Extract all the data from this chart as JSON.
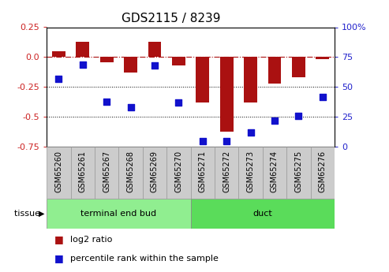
{
  "title": "GDS2115 / 8239",
  "samples": [
    "GSM65260",
    "GSM65261",
    "GSM65267",
    "GSM65268",
    "GSM65269",
    "GSM65270",
    "GSM65271",
    "GSM65272",
    "GSM65273",
    "GSM65274",
    "GSM65275",
    "GSM65276"
  ],
  "log2_ratio": [
    0.05,
    0.13,
    -0.04,
    -0.13,
    0.13,
    -0.07,
    -0.38,
    -0.62,
    -0.38,
    -0.22,
    -0.17,
    -0.02
  ],
  "percentile_rank": [
    57,
    69,
    38,
    33,
    68,
    37,
    5,
    5,
    12,
    22,
    26,
    42
  ],
  "groups": [
    {
      "label": "terminal end bud",
      "start": 0,
      "end": 6,
      "color": "#90ee90"
    },
    {
      "label": "duct",
      "start": 6,
      "end": 12,
      "color": "#5adc5a"
    }
  ],
  "ylim_left": [
    -0.75,
    0.25
  ],
  "ylim_right": [
    0,
    100
  ],
  "yticks_left": [
    0.25,
    0.0,
    -0.25,
    -0.5,
    -0.75
  ],
  "yticks_right": [
    100,
    75,
    50,
    25,
    0
  ],
  "hline_y": 0.0,
  "dotted_lines": [
    -0.25,
    -0.5
  ],
  "bar_color": "#aa1111",
  "dot_color": "#1111cc",
  "bar_width": 0.55,
  "dot_size": 35,
  "tissue_label": "tissue",
  "legend_entries": [
    {
      "label": "log2 ratio",
      "color": "#aa1111"
    },
    {
      "label": "percentile rank within the sample",
      "color": "#1111cc"
    }
  ],
  "bg_plot": "#ffffff",
  "bg_fig": "#ffffff",
  "ylabel_left_color": "#cc2222",
  "ylabel_right_color": "#2222cc",
  "sample_box_color": "#cccccc",
  "sample_box_edge": "#999999",
  "title_fontsize": 11,
  "tick_fontsize": 8,
  "sample_fontsize": 7,
  "legend_fontsize": 8
}
